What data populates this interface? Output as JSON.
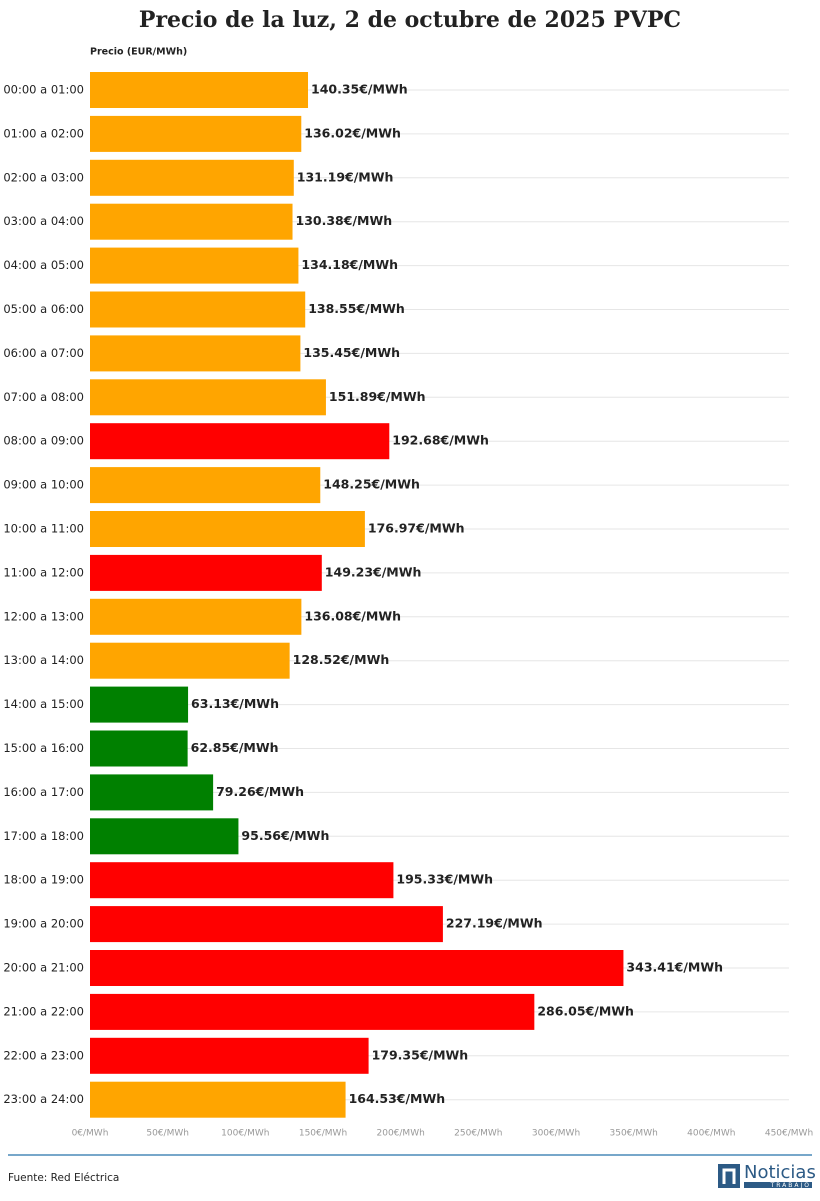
{
  "chart_data": {
    "type": "bar",
    "orientation": "horizontal",
    "title": "Precio de la luz, 2 de octubre de 2025 PVPC",
    "axis_label": "Precio (EUR/MWh)",
    "source": "Fuente: Red Eléctrica",
    "categories": [
      "00:00 a 01:00",
      "01:00 a 02:00",
      "02:00 a 03:00",
      "03:00 a 04:00",
      "04:00 a 05:00",
      "05:00 a 06:00",
      "06:00 a 07:00",
      "07:00 a 08:00",
      "08:00 a 09:00",
      "09:00 a 10:00",
      "10:00 a 11:00",
      "11:00 a 12:00",
      "12:00 a 13:00",
      "13:00 a 14:00",
      "14:00 a 15:00",
      "15:00 a 16:00",
      "16:00 a 17:00",
      "17:00 a 18:00",
      "18:00 a 19:00",
      "19:00 a 20:00",
      "20:00 a 21:00",
      "21:00 a 22:00",
      "22:00 a 23:00",
      "23:00 a 24:00"
    ],
    "values": [
      140.35,
      136.02,
      131.19,
      130.38,
      134.18,
      138.55,
      135.45,
      151.89,
      192.68,
      148.25,
      176.97,
      149.23,
      136.08,
      128.52,
      63.13,
      62.85,
      79.26,
      95.56,
      195.33,
      227.19,
      343.41,
      286.05,
      179.35,
      164.53
    ],
    "value_labels": [
      "140.35€/MWh",
      "136.02€/MWh",
      "131.19€/MWh",
      "130.38€/MWh",
      "134.18€/MWh",
      "138.55€/MWh",
      "135.45€/MWh",
      "151.89€/MWh",
      "192.68€/MWh",
      "148.25€/MWh",
      "176.97€/MWh",
      "149.23€/MWh",
      "136.08€/MWh",
      "128.52€/MWh",
      "63.13€/MWh",
      "62.85€/MWh",
      "79.26€/MWh",
      "95.56€/MWh",
      "195.33€/MWh",
      "227.19€/MWh",
      "343.41€/MWh",
      "286.05€/MWh",
      "179.35€/MWh",
      "164.53€/MWh"
    ],
    "colors": [
      "#ffa500",
      "#ffa500",
      "#ffa500",
      "#ffa500",
      "#ffa500",
      "#ffa500",
      "#ffa500",
      "#ffa500",
      "#ff0000",
      "#ffa500",
      "#ffa500",
      "#ff0000",
      "#ffa500",
      "#ffa500",
      "#008000",
      "#008000",
      "#008000",
      "#008000",
      "#ff0000",
      "#ff0000",
      "#ff0000",
      "#ff0000",
      "#ff0000",
      "#ffa500"
    ],
    "xlim": [
      0,
      450
    ],
    "xticks": [
      {
        "value": 0,
        "label": "0€/MWh"
      },
      {
        "value": 50,
        "label": "50€/MWh"
      },
      {
        "value": 100,
        "label": "100€/MWh"
      },
      {
        "value": 150,
        "label": "150€/MWh"
      },
      {
        "value": 200,
        "label": "200€/MWh"
      },
      {
        "value": 250,
        "label": "250€/MWh"
      },
      {
        "value": 300,
        "label": "300€/MWh"
      },
      {
        "value": 350,
        "label": "350€/MWh"
      },
      {
        "value": 400,
        "label": "400€/MWh"
      },
      {
        "value": 450,
        "label": "450€/MWh"
      }
    ],
    "grid": false
  },
  "logo": {
    "name": "Noticias",
    "sub": "TRABAJO"
  }
}
